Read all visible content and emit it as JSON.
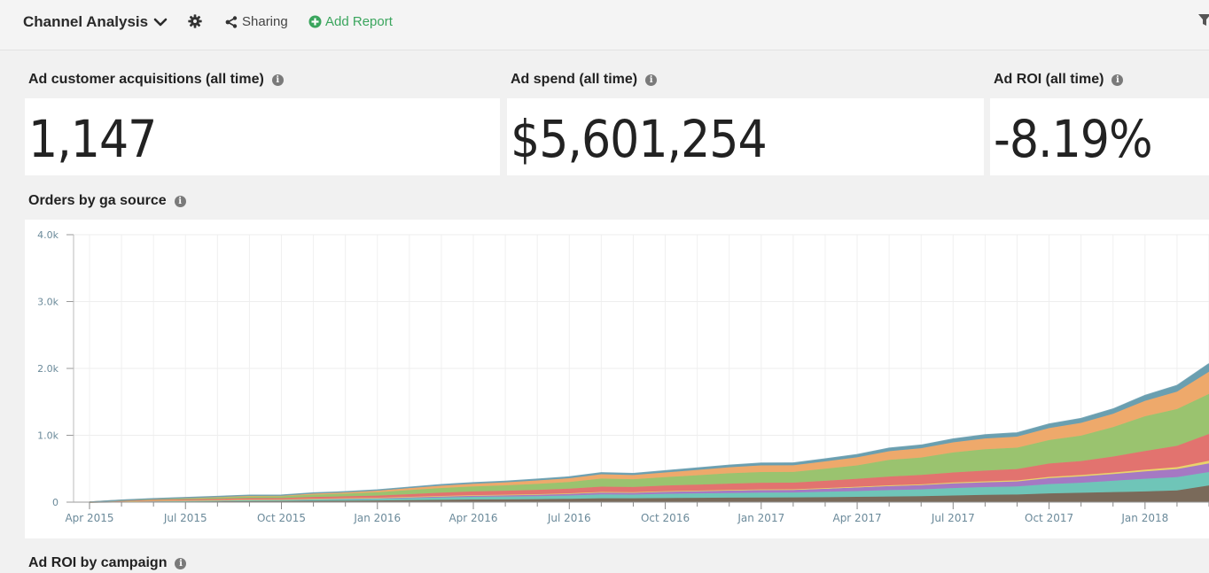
{
  "header": {
    "title": "Channel Analysis",
    "sharing_label": "Sharing",
    "add_report_label": "Add Report"
  },
  "kpis": [
    {
      "label": "Ad customer acquisitions (all time)",
      "value": "1,147"
    },
    {
      "label": "Ad spend (all time)",
      "value": "$5,601,254"
    },
    {
      "label": "Ad ROI (all time)",
      "value": "-8.19%"
    }
  ],
  "chart": {
    "label": "Orders by ga source"
  },
  "next_section": {
    "label": "Ad ROI by campaign"
  },
  "colors": {
    "accent_green": "#3aa55d"
  },
  "chart_data": {
    "type": "area",
    "stacked": true,
    "title": "Orders by ga source",
    "x_ticks": [
      "Apr 2015",
      "Jul 2015",
      "Oct 2015",
      "Jan 2016",
      "Apr 2016",
      "Jul 2016",
      "Oct 2016",
      "Jan 2017",
      "Apr 2017",
      "Jul 2017",
      "Oct 2017",
      "Jan 2018"
    ],
    "y_ticks": [
      "0",
      "1.0k",
      "2.0k",
      "3.0k",
      "4.0k"
    ],
    "ylim": [
      0,
      4000
    ],
    "grid": true,
    "legend": "none",
    "x": [
      "2015-04",
      "2015-05",
      "2015-06",
      "2015-07",
      "2015-08",
      "2015-09",
      "2015-10",
      "2015-11",
      "2015-12",
      "2016-01",
      "2016-02",
      "2016-03",
      "2016-04",
      "2016-05",
      "2016-06",
      "2016-07",
      "2016-08",
      "2016-09",
      "2016-10",
      "2016-11",
      "2016-12",
      "2017-01",
      "2017-02",
      "2017-03",
      "2017-04",
      "2017-05",
      "2017-06",
      "2017-07",
      "2017-08",
      "2017-09",
      "2017-10",
      "2017-11",
      "2017-12",
      "2018-01",
      "2018-02",
      "2018-03"
    ],
    "series": [
      {
        "color": "#7a6a5a",
        "values": [
          0,
          5,
          8,
          10,
          12,
          15,
          17,
          20,
          22,
          25,
          30,
          35,
          40,
          42,
          45,
          50,
          58,
          58,
          62,
          65,
          68,
          70,
          72,
          75,
          80,
          85,
          90,
          100,
          110,
          115,
          130,
          140,
          150,
          160,
          175,
          250
        ]
      },
      {
        "color": "#6fc5b8",
        "values": [
          0,
          5,
          8,
          10,
          12,
          15,
          15,
          20,
          22,
          25,
          30,
          35,
          40,
          42,
          45,
          50,
          58,
          55,
          62,
          65,
          68,
          72,
          72,
          80,
          85,
          95,
          100,
          110,
          115,
          120,
          140,
          150,
          170,
          190,
          200,
          200
        ]
      },
      {
        "color": "#a579c3",
        "values": [
          0,
          2,
          4,
          5,
          7,
          8,
          8,
          10,
          12,
          14,
          16,
          18,
          20,
          22,
          24,
          26,
          30,
          30,
          33,
          35,
          38,
          40,
          40,
          45,
          55,
          60,
          65,
          70,
          72,
          75,
          90,
          95,
          100,
          110,
          120,
          130
        ]
      },
      {
        "color": "#e9d36a",
        "values": [
          0,
          0,
          1,
          1,
          1,
          2,
          2,
          2,
          3,
          3,
          4,
          4,
          5,
          5,
          5,
          6,
          6,
          6,
          7,
          7,
          8,
          8,
          8,
          10,
          10,
          12,
          12,
          14,
          15,
          15,
          18,
          20,
          22,
          25,
          28,
          40
        ]
      },
      {
        "color": "#e2736f",
        "values": [
          0,
          8,
          12,
          15,
          18,
          20,
          20,
          25,
          28,
          30,
          40,
          50,
          55,
          60,
          65,
          70,
          80,
          78,
          85,
          90,
          95,
          100,
          100,
          110,
          120,
          130,
          140,
          150,
          160,
          170,
          200,
          210,
          240,
          280,
          320,
          400
        ]
      },
      {
        "color": "#9ac36f",
        "values": [
          0,
          5,
          10,
          15,
          20,
          25,
          25,
          35,
          40,
          50,
          60,
          70,
          75,
          80,
          90,
          100,
          120,
          115,
          125,
          140,
          155,
          160,
          160,
          180,
          200,
          250,
          260,
          300,
          320,
          320,
          350,
          380,
          440,
          520,
          550,
          600
        ]
      },
      {
        "color": "#eea96b",
        "values": [
          0,
          3,
          5,
          8,
          10,
          12,
          12,
          18,
          20,
          25,
          30,
          35,
          40,
          45,
          50,
          55,
          65,
          63,
          70,
          80,
          90,
          100,
          100,
          110,
          120,
          130,
          140,
          150,
          160,
          165,
          180,
          190,
          200,
          230,
          260,
          330
        ]
      },
      {
        "color": "#6a9fb0",
        "values": [
          0,
          2,
          3,
          4,
          5,
          5,
          5,
          7,
          8,
          10,
          12,
          14,
          15,
          16,
          18,
          20,
          22,
          22,
          25,
          28,
          30,
          32,
          32,
          35,
          40,
          45,
          45,
          50,
          55,
          55,
          60,
          65,
          70,
          80,
          90,
          120
        ]
      }
    ]
  }
}
